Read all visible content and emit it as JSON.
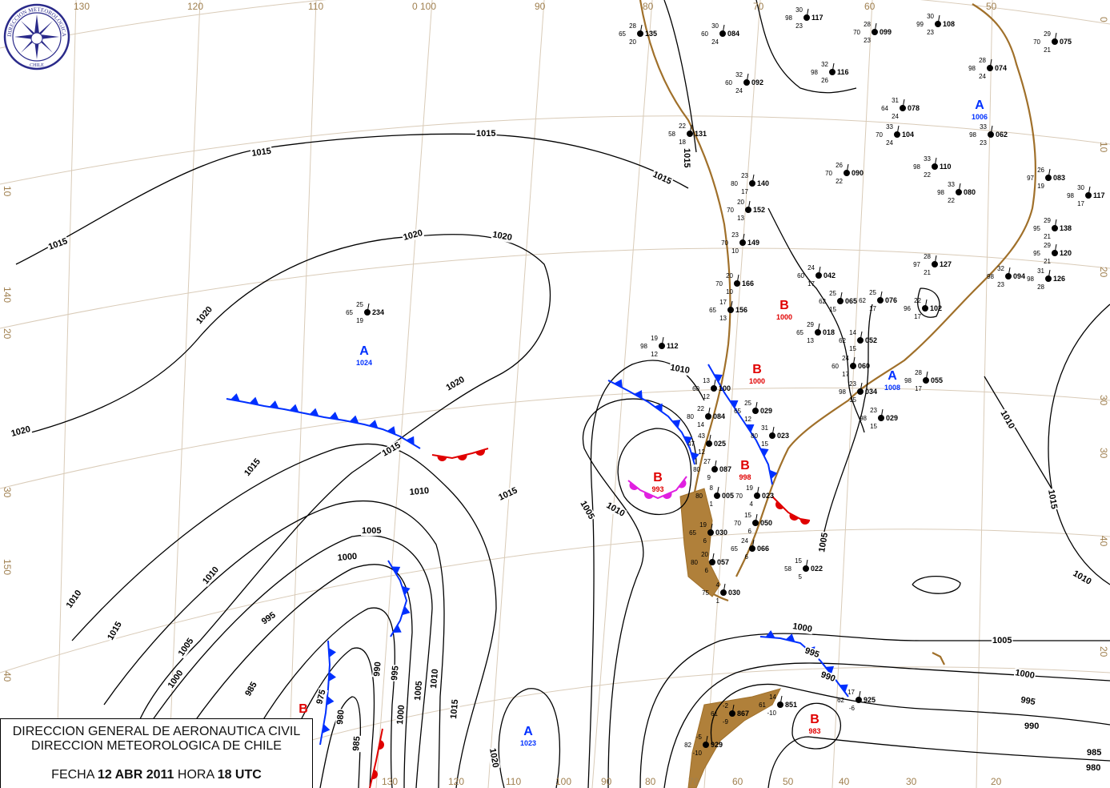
{
  "agency": {
    "line1": "DIRECCION GENERAL DE AERONAUTICA CIVIL",
    "line2": "DIRECCION METEOROLOGICA DE CHILE",
    "fecha_label": "FECHA",
    "fecha_value": "12 ABR 2011",
    "hora_label": "HORA",
    "hora_value": "18 UTC",
    "logo_text": "DIRECCION METEOROLOGICA CHILE"
  },
  "colors": {
    "high": "#0030ff",
    "low": "#e00000",
    "cold_front": "#0030ff",
    "warm_front": "#e00000",
    "occluded_front": "#e020e0",
    "isobar": "#000000",
    "coast": "#a0702a",
    "graticule": "#d9cbb8"
  },
  "graticule_labels": {
    "top": [
      "130",
      "120",
      "110",
      "0 100",
      "90",
      "80",
      "70",
      "60",
      "50"
    ],
    "left": [
      "10",
      "140",
      "20",
      "30",
      "150",
      "40"
    ],
    "right": [
      "0",
      "10",
      "20",
      "30",
      "30",
      "40",
      "20"
    ],
    "bottom": [
      "130",
      "120",
      "110",
      "100",
      "90",
      "80",
      "70",
      "60",
      "50",
      "40",
      "30",
      "20"
    ]
  },
  "isobar_labels": [
    "1015",
    "1015",
    "1015",
    "1015",
    "1015",
    "1020",
    "1020",
    "1020",
    "1020",
    "1020",
    "1015",
    "1015",
    "1010",
    "1005",
    "1000",
    "995",
    "1010",
    "1005",
    "1000",
    "985",
    "975",
    "980",
    "985",
    "990",
    "995",
    "1000",
    "1005",
    "1010",
    "1015",
    "1020",
    "1015",
    "1010",
    "1005",
    "1010",
    "1015",
    "1010",
    "1000",
    "995",
    "990",
    "1005",
    "1000",
    "995",
    "990",
    "985",
    "980",
    "1010",
    "1015",
    "1010",
    "1005"
  ],
  "pressure_centers": [
    {
      "type": "A",
      "value": "1024"
    },
    {
      "type": "A",
      "value": "1023"
    },
    {
      "type": "A",
      "value": "1008"
    },
    {
      "type": "A",
      "value": "1006"
    },
    {
      "type": "B",
      "value": "993"
    },
    {
      "type": "B",
      "value": "1000"
    },
    {
      "type": "B",
      "value": "1000"
    },
    {
      "type": "B",
      "value": "998"
    },
    {
      "type": "B",
      "value": "983"
    },
    {
      "type": "B",
      "value": ""
    }
  ],
  "stations": [
    {
      "id": "234",
      "t": "25",
      "td": "19",
      "p": "65"
    },
    {
      "id": "112",
      "t": "19",
      "td": "12",
      "p": "98"
    },
    {
      "id": "135",
      "t": "28",
      "td": "20",
      "p": "65"
    },
    {
      "id": "084",
      "t": "30",
      "td": "24",
      "p": "60"
    },
    {
      "id": "117",
      "t": "30",
      "td": "23",
      "p": "98"
    },
    {
      "id": "099",
      "t": "28",
      "td": "23",
      "p": "70"
    },
    {
      "id": "108",
      "t": "30",
      "td": "23",
      "p": "99"
    },
    {
      "id": "075",
      "t": "29",
      "td": "21",
      "p": "70"
    },
    {
      "id": "092",
      "t": "32",
      "td": "24",
      "p": "60"
    },
    {
      "id": "116",
      "t": "32",
      "td": "26",
      "p": "98"
    },
    {
      "id": "131",
      "t": "22",
      "td": "18",
      "p": "58"
    },
    {
      "id": "078",
      "t": "31",
      "td": "24",
      "p": "64"
    },
    {
      "id": "074",
      "t": "28",
      "td": "24",
      "p": "98"
    },
    {
      "id": "104",
      "t": "33",
      "td": "24",
      "p": "70"
    },
    {
      "id": "062",
      "t": "33",
      "td": "23",
      "p": "98"
    },
    {
      "id": "152",
      "t": "20",
      "td": "13",
      "p": "70"
    },
    {
      "id": "140",
      "t": "23",
      "td": "17",
      "p": "80"
    },
    {
      "id": "149",
      "t": "23",
      "td": "10",
      "p": "70"
    },
    {
      "id": "166",
      "t": "20",
      "td": "10",
      "p": "70"
    },
    {
      "id": "156",
      "t": "17",
      "td": "13",
      "p": "65"
    },
    {
      "id": "090",
      "t": "26",
      "td": "22",
      "p": "70"
    },
    {
      "id": "110",
      "t": "33",
      "td": "22",
      "p": "98"
    },
    {
      "id": "080",
      "t": "33",
      "td": "22",
      "p": "98"
    },
    {
      "id": "083",
      "t": "26",
      "td": "19",
      "p": "97"
    },
    {
      "id": "117",
      "t": "30",
      "td": "17",
      "p": "98"
    },
    {
      "id": "138",
      "t": "29",
      "td": "21",
      "p": "95"
    },
    {
      "id": "120",
      "t": "29",
      "td": "21",
      "p": "95"
    },
    {
      "id": "126",
      "t": "31",
      "td": "28",
      "p": "98"
    },
    {
      "id": "094",
      "t": "32",
      "td": "23",
      "p": "98"
    },
    {
      "id": "127",
      "t": "28",
      "td": "21",
      "p": "97"
    },
    {
      "id": "102",
      "t": "22",
      "td": "17",
      "p": "96"
    },
    {
      "id": "076",
      "t": "25",
      "td": "17",
      "p": "62"
    },
    {
      "id": "065",
      "t": "25",
      "td": "15",
      "p": "62"
    },
    {
      "id": "042",
      "t": "24",
      "td": "17",
      "p": "60"
    },
    {
      "id": "018",
      "t": "29",
      "td": "13",
      "p": "65"
    },
    {
      "id": "052",
      "t": "14",
      "td": "15",
      "p": "62"
    },
    {
      "id": "060",
      "t": "24",
      "td": "17",
      "p": "60"
    },
    {
      "id": "034",
      "t": "23",
      "td": "15",
      "p": "98"
    },
    {
      "id": "029",
      "t": "23",
      "td": "15",
      "p": "98"
    },
    {
      "id": "055",
      "t": "28",
      "td": "17",
      "p": "98"
    },
    {
      "id": "100",
      "t": "13",
      "td": "12",
      "p": "60"
    },
    {
      "id": "084",
      "t": "22",
      "td": "14",
      "p": "80"
    },
    {
      "id": "025",
      "t": "43",
      "td": "12",
      "p": "47"
    },
    {
      "id": "029",
      "t": "25",
      "td": "12",
      "p": "65"
    },
    {
      "id": "023",
      "t": "31",
      "td": "15",
      "p": "80"
    },
    {
      "id": "087",
      "t": "27",
      "td": "9",
      "p": "80"
    },
    {
      "id": "005",
      "t": "8",
      "td": "1",
      "p": "80"
    },
    {
      "id": "023",
      "t": "19",
      "td": "4",
      "p": "70"
    },
    {
      "id": "050",
      "t": "15",
      "td": "6",
      "p": "70"
    },
    {
      "id": "066",
      "t": "24",
      "td": "6",
      "p": "65"
    },
    {
      "id": "030",
      "t": "19",
      "td": "6",
      "p": "65"
    },
    {
      "id": "057",
      "t": "20",
      "td": "6",
      "p": "80"
    },
    {
      "id": "030",
      "t": "4",
      "td": "1",
      "p": "75"
    },
    {
      "id": "022",
      "t": "15",
      "td": "5",
      "p": "58"
    },
    {
      "id": "851",
      "t": "14",
      "td": "-10",
      "p": "61"
    },
    {
      "id": "867",
      "t": "-2",
      "td": "-9",
      "p": "61"
    },
    {
      "id": "929",
      "t": "-5",
      "td": "-10",
      "p": "82"
    },
    {
      "id": "925",
      "t": "17",
      "td": "-6",
      "p": "62"
    }
  ]
}
